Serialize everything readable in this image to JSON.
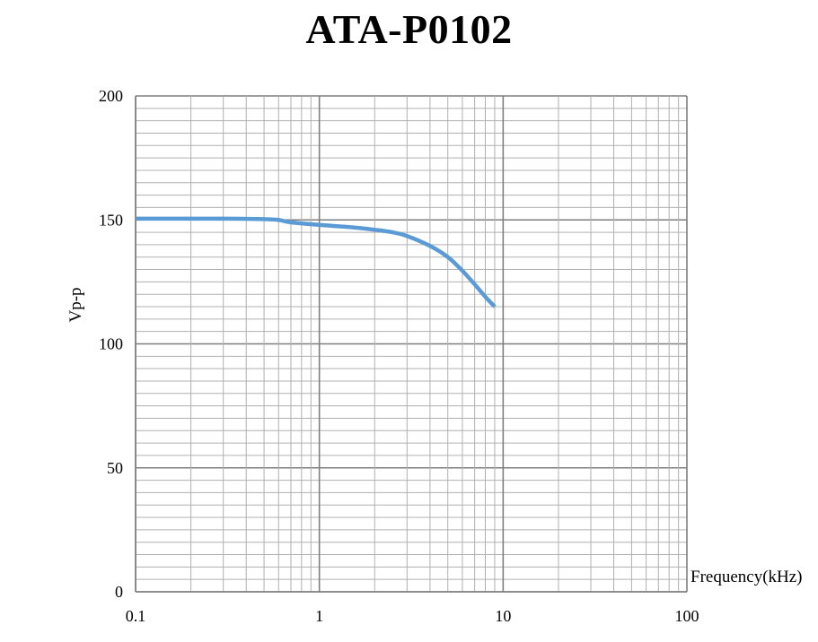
{
  "chart_data": {
    "type": "line",
    "title": "ATA-P0102",
    "xlabel": "Frequency(kHz)",
    "ylabel": "Vp-p",
    "x_scale": "log",
    "xlim": [
      0.1,
      100
    ],
    "ylim": [
      0,
      200
    ],
    "x_ticks": [
      "0.1",
      "1",
      "10",
      "100"
    ],
    "y_ticks": [
      "0",
      "50",
      "100",
      "150",
      "200"
    ],
    "grid": true,
    "legend": "none",
    "series": [
      {
        "color": "#5b9bd5",
        "x": [
          0.1,
          0.2,
          0.3,
          0.5,
          0.6,
          0.7,
          1,
          1.5,
          2,
          2.5,
          3,
          4,
          5,
          6,
          7,
          8,
          9
        ],
        "y": [
          150.5,
          150.5,
          150.5,
          150.3,
          150,
          149,
          148,
          147,
          146,
          145,
          143.5,
          139.5,
          135,
          129.5,
          124,
          119,
          115
        ]
      }
    ]
  }
}
